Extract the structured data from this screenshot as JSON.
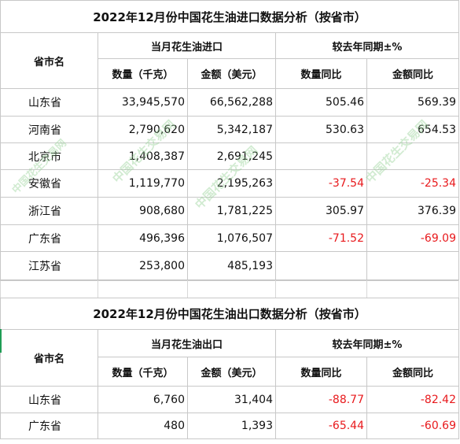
{
  "import_table": {
    "title": "2022年12月份中国花生油进口数据分析（按省市）",
    "col_province": "省市名",
    "group_current": "当月花生油进口",
    "group_yoy": "较去年同期±%",
    "col_qty": "数量（千克）",
    "col_amount": "金额（美元）",
    "col_qty_yoy": "数量同比",
    "col_amount_yoy": "金额同比",
    "rows": [
      {
        "province": "山东省",
        "qty": "33,945,570",
        "amount": "66,562,288",
        "qty_yoy": "505.46",
        "amount_yoy": "569.39"
      },
      {
        "province": "河南省",
        "qty": "2,790,620",
        "amount": "5,342,187",
        "qty_yoy": "530.63",
        "amount_yoy": "654.53"
      },
      {
        "province": "北京市",
        "qty": "1,408,387",
        "amount": "2,691,245",
        "qty_yoy": "",
        "amount_yoy": ""
      },
      {
        "province": "安徽省",
        "qty": "1,119,770",
        "amount": "2,195,263",
        "qty_yoy": "-37.54",
        "amount_yoy": "-25.34"
      },
      {
        "province": "浙江省",
        "qty": "908,680",
        "amount": "1,781,225",
        "qty_yoy": "305.97",
        "amount_yoy": "376.39"
      },
      {
        "province": "广东省",
        "qty": "496,396",
        "amount": "1,076,507",
        "qty_yoy": "-71.52",
        "amount_yoy": "-69.09"
      },
      {
        "province": "江苏省",
        "qty": "253,800",
        "amount": "485,193",
        "qty_yoy": "",
        "amount_yoy": ""
      }
    ]
  },
  "export_table": {
    "title": "2022年12月份中国花生油出口数据分析（按省市）",
    "col_province": "省市名",
    "group_current": "当月花生油出口",
    "group_yoy": "较去年同期±%",
    "col_qty": "数量（千克）",
    "col_amount": "金额（美元）",
    "col_qty_yoy": "数量同比",
    "col_amount_yoy": "金额同比",
    "rows": [
      {
        "province": "山东省",
        "qty": "6,760",
        "amount": "31,404",
        "qty_yoy": "-88.77",
        "amount_yoy": "-82.42"
      },
      {
        "province": "广东省",
        "qty": "480",
        "amount": "1,393",
        "qty_yoy": "-65.44",
        "amount_yoy": "-60.69"
      }
    ]
  },
  "watermark": {
    "text": "中国花生交易网",
    "url": "huashengw.com"
  },
  "colors": {
    "negative": "#e8191c",
    "grid": "#c8c8c8",
    "watermark": "#9bd39b"
  }
}
